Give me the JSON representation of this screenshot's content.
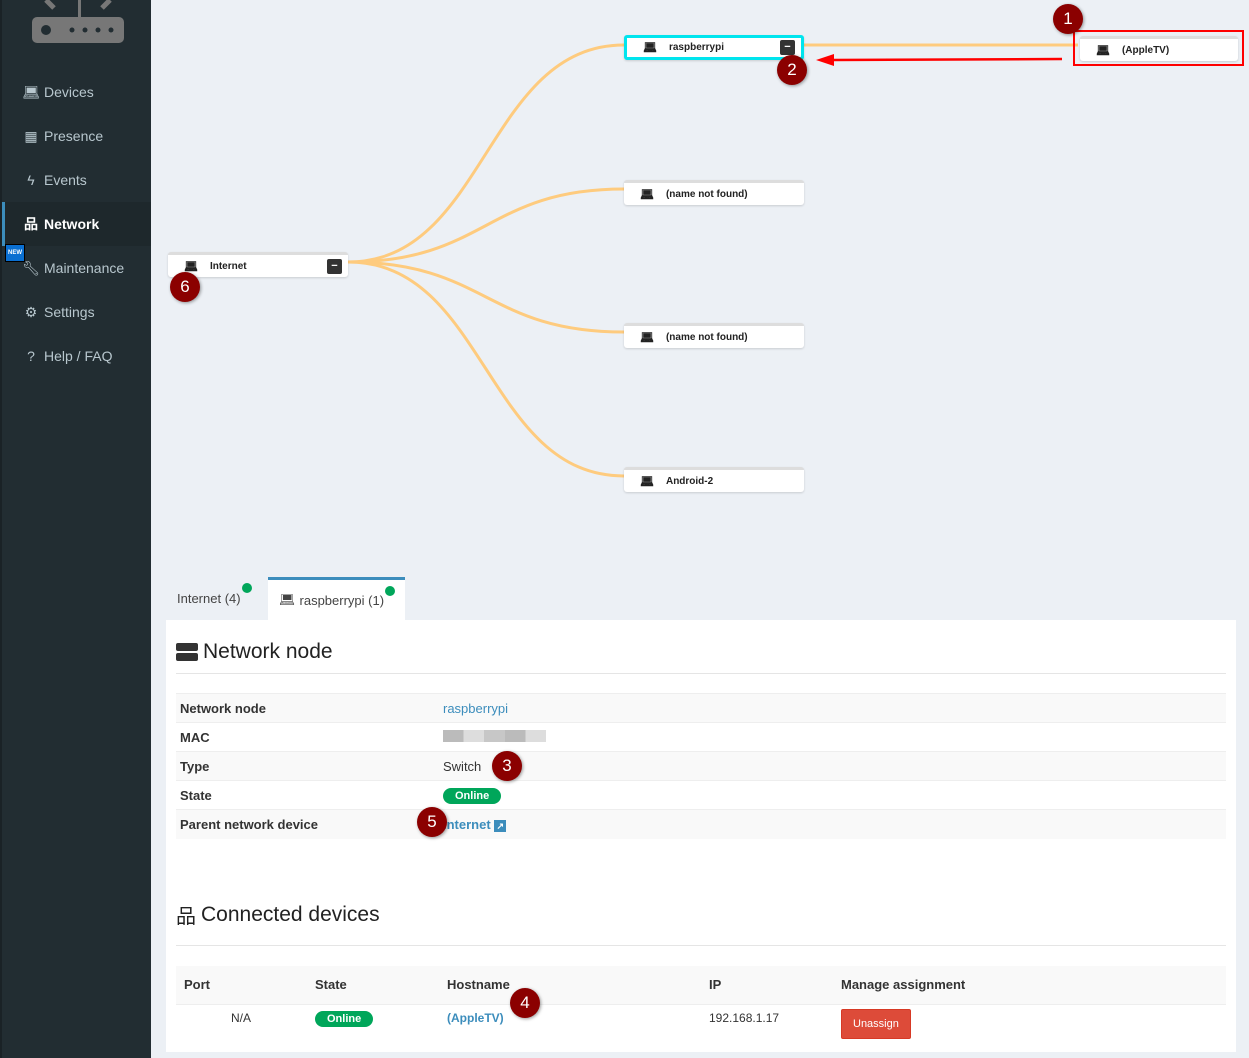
{
  "sidebar": {
    "items": [
      {
        "label": "Devices",
        "icon": "laptop-icon"
      },
      {
        "label": "Presence",
        "icon": "calendar-icon"
      },
      {
        "label": "Events",
        "icon": "bolt-icon"
      },
      {
        "label": "Network",
        "icon": "sitemap-icon",
        "active": true
      },
      {
        "label": "Maintenance",
        "icon": "wrench-icon",
        "badge": "NEW"
      },
      {
        "label": "Settings",
        "icon": "gear-icon"
      },
      {
        "label": "Help / FAQ",
        "icon": "question-icon"
      }
    ]
  },
  "tree": {
    "root": {
      "label": "Internet",
      "collapse": "−"
    },
    "children": [
      {
        "label": "raspberrypi",
        "collapse": "−",
        "selected": true
      },
      {
        "label": "(name not found)"
      },
      {
        "label": "(name not found)"
      },
      {
        "label": "Android-2"
      }
    ],
    "grandchild": {
      "label": "(AppleTV)"
    },
    "link_color": "#fecb7e"
  },
  "markers": [
    "1",
    "2",
    "3",
    "4",
    "5",
    "6"
  ],
  "tabs": [
    {
      "label": "Internet (4)"
    },
    {
      "label": "raspberrypi (1)",
      "active": true
    }
  ],
  "network_node": {
    "title": "Network node",
    "rows": [
      {
        "label": "Network node",
        "value": "raspberrypi"
      },
      {
        "label": "MAC",
        "value": ""
      },
      {
        "label": "Type",
        "value": "Switch"
      },
      {
        "label": "State",
        "value": "Online"
      },
      {
        "label": "Parent network device",
        "value": "Internet"
      }
    ]
  },
  "connected": {
    "title": "Connected devices",
    "headers": [
      "Port",
      "State",
      "Hostname",
      "IP",
      "Manage assignment"
    ],
    "rows": [
      {
        "port": "N/A",
        "state": "Online",
        "hostname": "(AppleTV)",
        "ip": "192.168.1.17",
        "action": "Unassign"
      }
    ]
  },
  "colors": {
    "sidebar": "#222d32",
    "accent": "#3c8dbc",
    "online": "#00a65a",
    "danger": "#dd4b39",
    "marker": "#8b0000",
    "annotation": "#ff0000"
  }
}
